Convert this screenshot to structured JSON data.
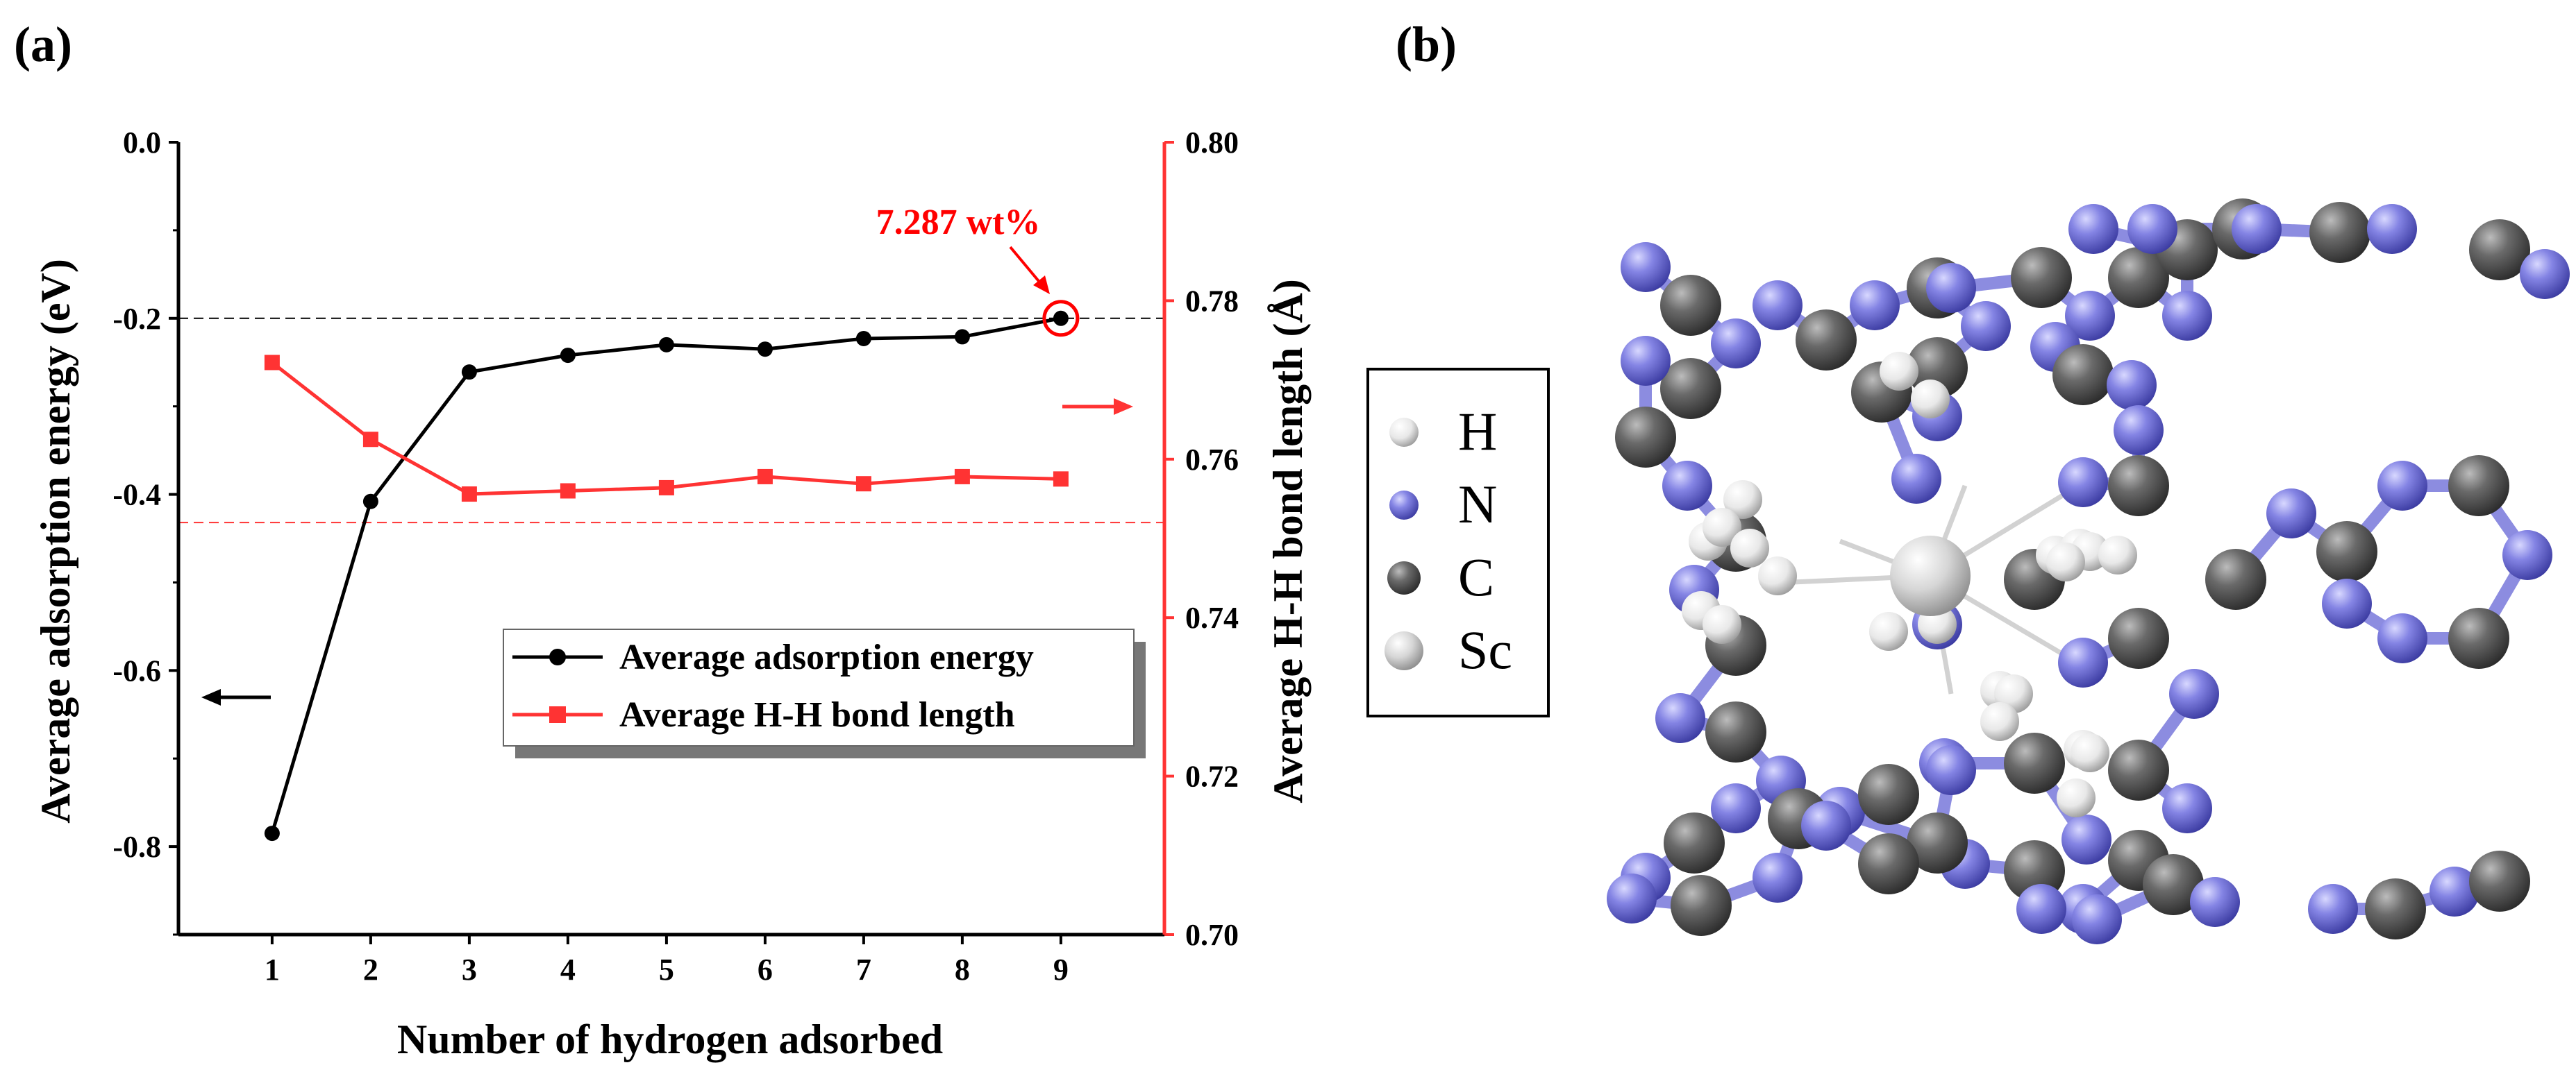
{
  "panel_a_label": "(a)",
  "panel_b_label": "(b)",
  "chart_data": {
    "type": "line",
    "title": "",
    "xlabel": "Number of hydrogen adsorbed",
    "ylabel": "Average adsorption energy (eV)",
    "y2label": "Average H-H bond length (Å)",
    "x": [
      1,
      2,
      3,
      4,
      5,
      6,
      7,
      8,
      9
    ],
    "xlim": [
      0.05,
      10.05
    ],
    "ylim": [
      -0.9,
      0.0
    ],
    "y2lim": [
      0.7,
      0.8
    ],
    "y_ticks": [
      "0.0",
      "-0.2",
      "-0.4",
      "-0.6",
      "-0.8"
    ],
    "y_tick_values": [
      0.0,
      -0.2,
      -0.4,
      -0.6,
      -0.8
    ],
    "y2_ticks": [
      "0.80",
      "0.78",
      "0.76",
      "0.74",
      "0.72",
      "0.70"
    ],
    "y2_tick_values": [
      0.8,
      0.78,
      0.76,
      0.74,
      0.72,
      0.7
    ],
    "x_ticks": [
      "1",
      "2",
      "3",
      "4",
      "5",
      "6",
      "7",
      "8",
      "9"
    ],
    "series": [
      {
        "name": "Average adsorption energy",
        "axis": "left",
        "color": "#000000",
        "marker": "circle",
        "values": [
          -0.785,
          -0.408,
          -0.261,
          -0.242,
          -0.23,
          -0.235,
          -0.223,
          -0.221,
          -0.2
        ]
      },
      {
        "name": "Average H-H bond length",
        "axis": "right",
        "color": "#ff3333",
        "marker": "square",
        "values": [
          0.7722,
          0.7625,
          0.7556,
          0.756,
          0.7564,
          0.7578,
          0.7569,
          0.7578,
          0.7575
        ]
      }
    ],
    "reference_lines": [
      {
        "axis": "left",
        "value": -0.2,
        "color": "#000000"
      },
      {
        "axis": "left",
        "value": -0.432,
        "color": "#ff3333"
      }
    ],
    "annotation": {
      "text": "7.287 wt%",
      "x": 9,
      "color": "#ff0000"
    },
    "legend_position": "lower-right"
  },
  "legend_b": {
    "items": [
      {
        "label": "H",
        "color": "#e8e8e8"
      },
      {
        "label": "N",
        "color": "#8080e6"
      },
      {
        "label": "C",
        "color": "#666666"
      },
      {
        "label": "Sc",
        "color": "#cccccc"
      }
    ]
  },
  "colors": {
    "nitrogen": "#7b7bde",
    "carbon": "#5f5f5f",
    "hydrogen": "#e6e6e6",
    "scandium": "#cfcfcf",
    "accent_red": "#ff3333"
  }
}
